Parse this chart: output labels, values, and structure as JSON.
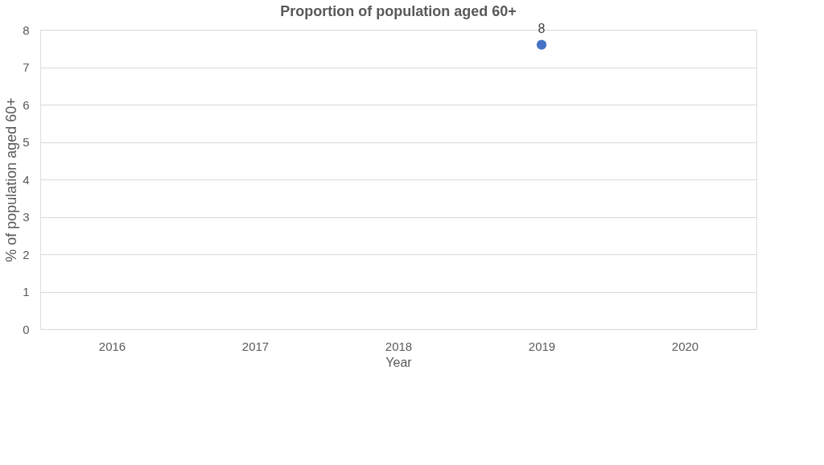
{
  "chart_data": {
    "type": "scatter",
    "title": "Proportion of population aged 60+",
    "xlabel": "Year",
    "ylabel": "% of population aged 60+",
    "categories": [
      "2016",
      "2017",
      "2018",
      "2019",
      "2020"
    ],
    "series": [
      {
        "color": "#4472c4",
        "values": [
          null,
          null,
          null,
          7.6,
          null
        ],
        "value_labels": [
          null,
          null,
          null,
          "8",
          null
        ]
      }
    ],
    "ylim": [
      0,
      8
    ],
    "yticks": [
      0,
      1,
      2,
      3,
      4,
      5,
      6,
      7,
      8
    ],
    "grid": "y",
    "marker": "circle"
  }
}
